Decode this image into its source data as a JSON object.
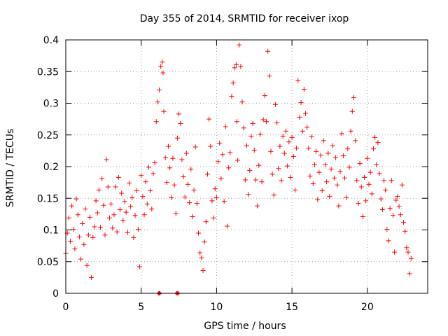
{
  "chart_data": {
    "type": "scatter",
    "title": "Day 355 of 2014, SRMTID for receiver ixop",
    "xlabel": "GPS time / hours",
    "ylabel": "SRMTID / TECUs",
    "xlim": [
      0,
      24
    ],
    "ylim": [
      0,
      0.4
    ],
    "x_ticks": [
      0,
      5,
      10,
      15,
      20
    ],
    "y_ticks": [
      0,
      0.05,
      0.1,
      0.15,
      0.2,
      0.25,
      0.3,
      0.35,
      0.4
    ],
    "x_tick_labels": [
      "0",
      "5",
      "10",
      "15",
      "20"
    ],
    "y_tick_labels": [
      "0",
      "0.05",
      "0.1",
      "0.15",
      "0.2",
      "0.25",
      "0.3",
      "0.35",
      "0.4"
    ],
    "grid": true,
    "marker": "+",
    "color": "#ff0000",
    "series": [
      {
        "name": "SRMTID",
        "points": [
          [
            0.0,
            0.063
          ],
          [
            0.1,
            0.095
          ],
          [
            0.2,
            0.119
          ],
          [
            0.3,
            0.082
          ],
          [
            0.4,
            0.138
          ],
          [
            0.5,
            0.101
          ],
          [
            0.6,
            0.07
          ],
          [
            0.7,
            0.149
          ],
          [
            0.8,
            0.124
          ],
          [
            0.9,
            0.089
          ],
          [
            1.0,
            0.054
          ],
          [
            1.1,
            0.11
          ],
          [
            1.2,
            0.077
          ],
          [
            1.3,
            0.133
          ],
          [
            1.4,
            0.044
          ],
          [
            1.5,
            0.092
          ],
          [
            1.6,
            0.12
          ],
          [
            1.7,
            0.025
          ],
          [
            1.8,
            0.088
          ],
          [
            1.9,
            0.105
          ],
          [
            2.0,
            0.146
          ],
          [
            2.1,
            0.127
          ],
          [
            2.2,
            0.163
          ],
          [
            2.3,
            0.104
          ],
          [
            2.4,
            0.181
          ],
          [
            2.5,
            0.139
          ],
          [
            2.6,
            0.092
          ],
          [
            2.7,
            0.211
          ],
          [
            2.8,
            0.168
          ],
          [
            2.9,
            0.119
          ],
          [
            3.0,
            0.141
          ],
          [
            3.1,
            0.103
          ],
          [
            3.2,
            0.124
          ],
          [
            3.3,
            0.168
          ],
          [
            3.4,
            0.097
          ],
          [
            3.5,
            0.183
          ],
          [
            3.6,
            0.132
          ],
          [
            3.7,
            0.158
          ],
          [
            3.8,
            0.115
          ],
          [
            3.9,
            0.145
          ],
          [
            4.0,
            0.128
          ],
          [
            4.1,
            0.096
          ],
          [
            4.2,
            0.174
          ],
          [
            4.3,
            0.137
          ],
          [
            4.4,
            0.151
          ],
          [
            4.5,
            0.088
          ],
          [
            4.6,
            0.123
          ],
          [
            4.7,
            0.162
          ],
          [
            4.8,
            0.101
          ],
          [
            4.9,
            0.042
          ],
          [
            5.0,
            0.186
          ],
          [
            5.1,
            0.153
          ],
          [
            5.2,
            0.124
          ],
          [
            5.3,
            0.176
          ],
          [
            5.4,
            0.141
          ],
          [
            5.5,
            0.199
          ],
          [
            5.6,
            0.162
          ],
          [
            5.7,
            0.133
          ],
          [
            5.8,
            0.189
          ],
          [
            5.9,
            0.206
          ],
          [
            6.0,
            0.271
          ],
          [
            6.1,
            0.302
          ],
          [
            6.2,
            0.321
          ],
          [
            6.3,
            0.358
          ],
          [
            6.4,
            0.365
          ],
          [
            6.45,
            0.348
          ],
          [
            6.5,
            0.287
          ],
          [
            6.6,
            0.214
          ],
          [
            6.7,
            0.175
          ],
          [
            6.8,
            0.232
          ],
          [
            6.9,
            0.198
          ],
          [
            7.0,
            0.151
          ],
          [
            7.1,
            0.213
          ],
          [
            7.2,
            0.171
          ],
          [
            7.3,
            0.126
          ],
          [
            7.4,
            0.245
          ],
          [
            7.5,
            0.283
          ],
          [
            7.6,
            0.268
          ],
          [
            7.7,
            0.211
          ],
          [
            7.8,
            0.184
          ],
          [
            7.9,
            0.152
          ],
          [
            8.0,
            0.221
          ],
          [
            8.1,
            0.172
          ],
          [
            8.2,
            0.143
          ],
          [
            8.3,
            0.196
          ],
          [
            8.4,
            0.121
          ],
          [
            8.5,
            0.163
          ],
          [
            8.6,
            0.231
          ],
          [
            8.7,
            0.142
          ],
          [
            8.8,
            0.095
          ],
          [
            8.9,
            0.064
          ],
          [
            9.0,
            0.056
          ],
          [
            9.1,
            0.036
          ],
          [
            9.2,
            0.081
          ],
          [
            9.3,
            0.113
          ],
          [
            9.4,
            0.188
          ],
          [
            9.5,
            0.275
          ],
          [
            9.6,
            0.232
          ],
          [
            9.7,
            0.146
          ],
          [
            9.8,
            0.119
          ],
          [
            9.9,
            0.165
          ],
          [
            10.0,
            0.151
          ],
          [
            10.1,
            0.208
          ],
          [
            10.2,
            0.237
          ],
          [
            10.3,
            0.181
          ],
          [
            10.4,
            0.219
          ],
          [
            10.5,
            0.145
          ],
          [
            10.6,
            0.263
          ],
          [
            10.7,
            0.106
          ],
          [
            10.8,
            0.198
          ],
          [
            10.9,
            0.222
          ],
          [
            11.0,
            0.311
          ],
          [
            11.1,
            0.332
          ],
          [
            11.2,
            0.356
          ],
          [
            11.3,
            0.361
          ],
          [
            11.35,
            0.271
          ],
          [
            11.4,
            0.21
          ],
          [
            11.5,
            0.392
          ],
          [
            11.6,
            0.358
          ],
          [
            11.7,
            0.302
          ],
          [
            11.8,
            0.261
          ],
          [
            11.9,
            0.179
          ],
          [
            12.0,
            0.233
          ],
          [
            12.1,
            0.156
          ],
          [
            12.2,
            0.194
          ],
          [
            12.3,
            0.248
          ],
          [
            12.4,
            0.268
          ],
          [
            12.5,
            0.226
          ],
          [
            12.6,
            0.179
          ],
          [
            12.7,
            0.138
          ],
          [
            12.8,
            0.202
          ],
          [
            12.9,
            0.251
          ],
          [
            13.0,
            0.176
          ],
          [
            13.1,
            0.274
          ],
          [
            13.2,
            0.312
          ],
          [
            13.3,
            0.271
          ],
          [
            13.4,
            0.382
          ],
          [
            13.5,
            0.343
          ],
          [
            13.6,
            0.224
          ],
          [
            13.7,
            0.188
          ],
          [
            13.8,
            0.155
          ],
          [
            13.9,
            0.298
          ],
          [
            14.0,
            0.269
          ],
          [
            14.1,
            0.197
          ],
          [
            14.2,
            0.232
          ],
          [
            14.3,
            0.178
          ],
          [
            14.4,
            0.248
          ],
          [
            14.5,
            0.221
          ],
          [
            14.6,
            0.256
          ],
          [
            14.7,
            0.201
          ],
          [
            14.8,
            0.239
          ],
          [
            14.9,
            0.183
          ],
          [
            15.0,
            0.246
          ],
          [
            15.1,
            0.216
          ],
          [
            15.2,
            0.163
          ],
          [
            15.3,
            0.229
          ],
          [
            15.4,
            0.336
          ],
          [
            15.5,
            0.278
          ],
          [
            15.6,
            0.301
          ],
          [
            15.7,
            0.256
          ],
          [
            15.8,
            0.322
          ],
          [
            15.9,
            0.284
          ],
          [
            16.0,
            0.262
          ],
          [
            16.1,
            0.229
          ],
          [
            16.2,
            0.185
          ],
          [
            16.3,
            0.247
          ],
          [
            16.4,
            0.173
          ],
          [
            16.5,
            0.203
          ],
          [
            16.6,
            0.224
          ],
          [
            16.7,
            0.148
          ],
          [
            16.8,
            0.191
          ],
          [
            16.9,
            0.218
          ],
          [
            17.0,
            0.162
          ],
          [
            17.1,
            0.241
          ],
          [
            17.2,
            0.203
          ],
          [
            17.3,
            0.176
          ],
          [
            17.4,
            0.221
          ],
          [
            17.5,
            0.153
          ],
          [
            17.6,
            0.196
          ],
          [
            17.7,
            0.233
          ],
          [
            17.8,
            0.182
          ],
          [
            17.9,
            0.214
          ],
          [
            18.0,
            0.171
          ],
          [
            18.1,
            0.138
          ],
          [
            18.2,
            0.192
          ],
          [
            18.3,
            0.252
          ],
          [
            18.4,
            0.217
          ],
          [
            18.5,
            0.182
          ],
          [
            18.6,
            0.151
          ],
          [
            18.7,
            0.228
          ],
          [
            18.8,
            0.199
          ],
          [
            18.9,
            0.256
          ],
          [
            19.0,
            0.287
          ],
          [
            19.1,
            0.309
          ],
          [
            19.2,
            0.241
          ],
          [
            19.3,
            0.178
          ],
          [
            19.4,
            0.142
          ],
          [
            19.5,
            0.205
          ],
          [
            19.6,
            0.168
          ],
          [
            19.7,
            0.121
          ],
          [
            19.8,
            0.183
          ],
          [
            19.9,
            0.146
          ],
          [
            20.0,
            0.213
          ],
          [
            20.1,
            0.172
          ],
          [
            20.2,
            0.191
          ],
          [
            20.3,
            0.157
          ],
          [
            20.4,
            0.228
          ],
          [
            20.5,
            0.246
          ],
          [
            20.6,
            0.203
          ],
          [
            20.7,
            0.238
          ],
          [
            20.8,
            0.189
          ],
          [
            20.9,
            0.149
          ],
          [
            21.0,
            0.132
          ],
          [
            21.1,
            0.178
          ],
          [
            21.2,
            0.163
          ],
          [
            21.3,
            0.101
          ],
          [
            21.4,
            0.083
          ],
          [
            21.5,
            0.134
          ],
          [
            21.6,
            0.178
          ],
          [
            21.7,
            0.123
          ],
          [
            21.8,
            0.065
          ],
          [
            21.9,
            0.147
          ],
          [
            22.0,
            0.153
          ],
          [
            22.1,
            0.137
          ],
          [
            22.2,
            0.124
          ],
          [
            22.3,
            0.171
          ],
          [
            22.4,
            0.112
          ],
          [
            22.5,
            0.098
          ],
          [
            22.6,
            0.072
          ],
          [
            22.7,
            0.065
          ],
          [
            22.8,
            0.031
          ],
          [
            22.9,
            0.055
          ]
        ]
      }
    ],
    "reference_points": [
      [
        6.2,
        0.0
      ],
      [
        7.4,
        0.0
      ]
    ]
  }
}
